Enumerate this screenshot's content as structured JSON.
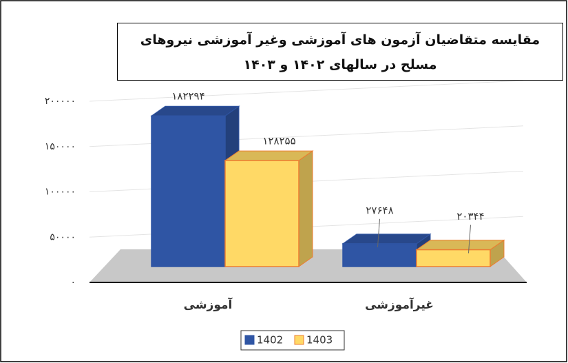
{
  "chart_data": {
    "type": "bar3d",
    "title": "مقایسه متقاضیان آزمون های آموزشی وغیر آموزشی نیروهای مسلح در سالهای ۱۴۰۲ و ۱۴۰۳",
    "categories": [
      "آموزشی",
      "غیرآموزشی"
    ],
    "series": [
      {
        "name": "1402",
        "color": "#2f55a4",
        "values": [
          182294,
          27648
        ],
        "value_labels": [
          "۱۸۲۲۹۴",
          "۲۷۶۴۸"
        ]
      },
      {
        "name": "1403",
        "color": "#ffd966",
        "values": [
          128255,
          20344
        ],
        "value_labels": [
          "۱۲۸۲۵۵",
          "۲۰۳۴۴"
        ]
      }
    ],
    "ylim": [
      0,
      200000
    ],
    "yticks": [
      {
        "value": 0,
        "label": "۰"
      },
      {
        "value": 50000,
        "label": "۵۰۰۰۰"
      },
      {
        "value": 100000,
        "label": "۱۰۰۰۰۰"
      },
      {
        "value": 150000,
        "label": "۱۵۰۰۰۰"
      },
      {
        "value": 200000,
        "label": "۲۰۰۰۰۰"
      }
    ],
    "grid": true,
    "legend": "bottom"
  }
}
